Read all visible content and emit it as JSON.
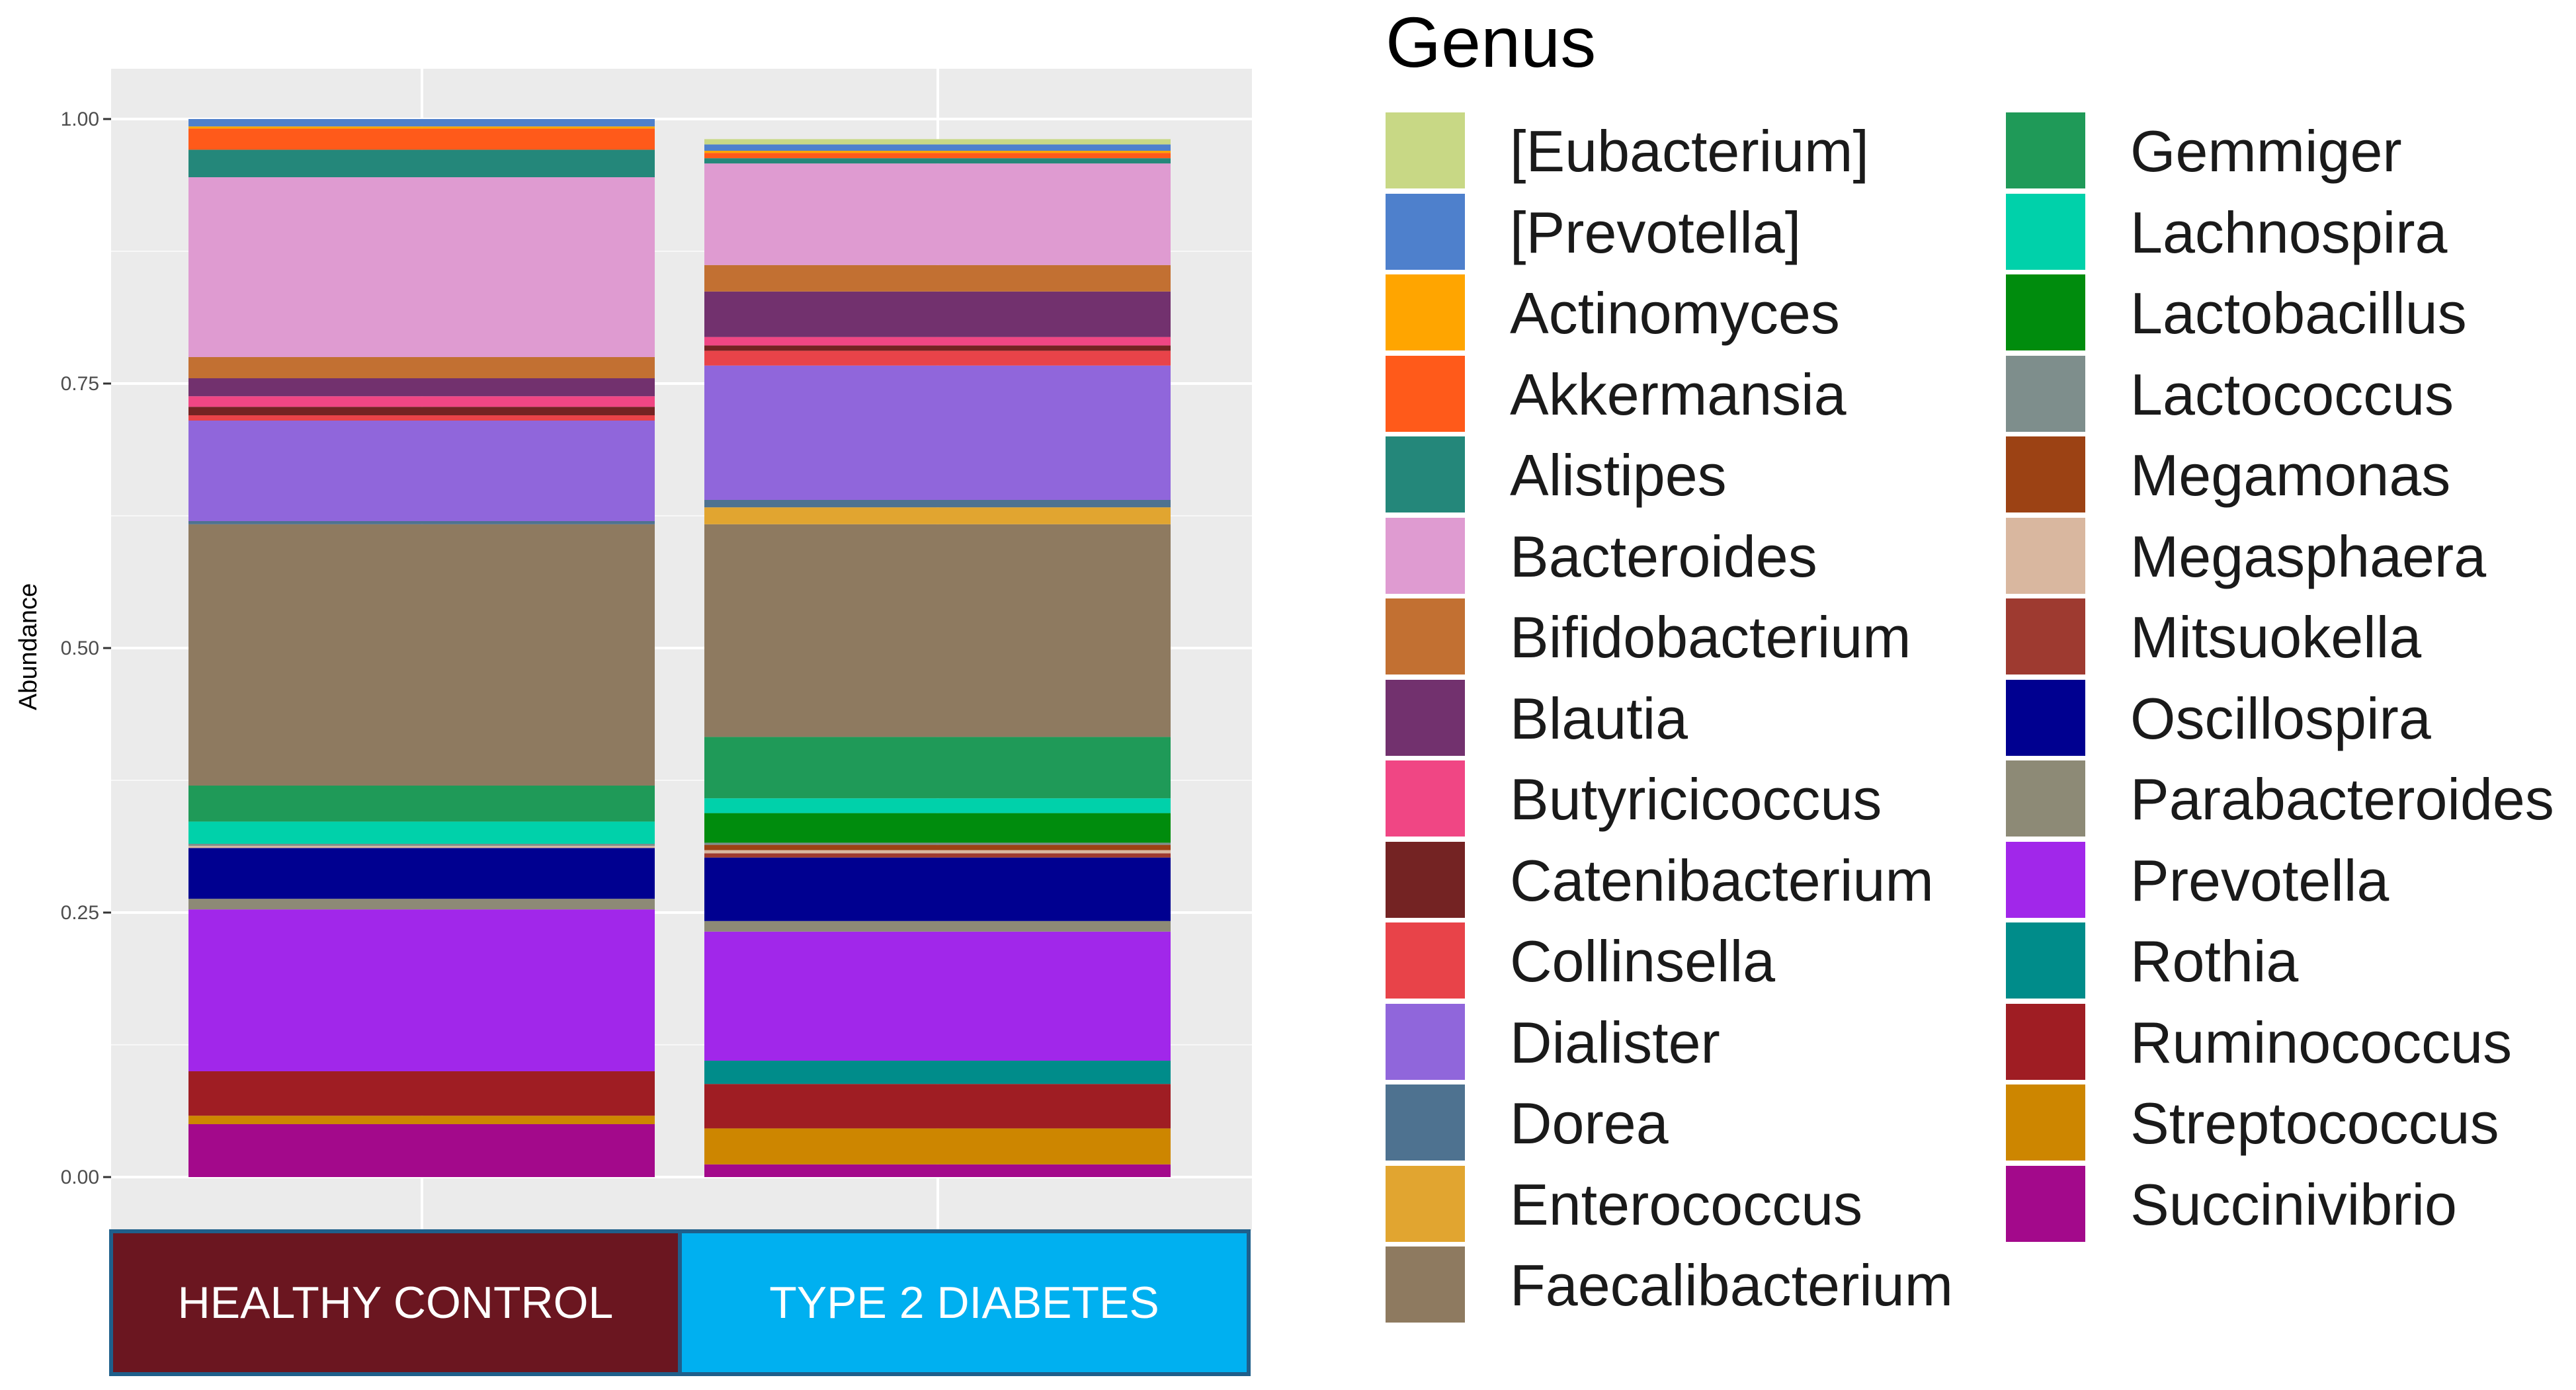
{
  "chart_data": {
    "type": "bar",
    "stacked": true,
    "ylabel": "Abundance",
    "ylim": [
      0,
      1.05
    ],
    "yticks": [
      "0.00",
      "0.25",
      "0.50",
      "0.75",
      "1.00"
    ],
    "categories": [
      "HEALTHY CONTROL",
      "TYPE 2 DIABETES"
    ],
    "strips": [
      {
        "label": "HEALTHY CONTROL",
        "color": "#6b1620",
        "text_color": "#ffffff"
      },
      {
        "label": "TYPE 2 DIABETES",
        "color": "#00b0f0",
        "text_color": "#ffffff"
      }
    ],
    "legend_title": "Genus",
    "legend_position": "right",
    "series": [
      {
        "name": "[Eubacterium]",
        "color": "#c8d885",
        "values": [
          0.0,
          0.005
        ]
      },
      {
        "name": "[Prevotella]",
        "color": "#4e80cc",
        "values": [
          0.007,
          0.006
        ]
      },
      {
        "name": "Actinomyces",
        "color": "#ffa500",
        "values": [
          0.002,
          0.002
        ]
      },
      {
        "name": "Akkermansia",
        "color": "#ff5a1a",
        "values": [
          0.02,
          0.005
        ]
      },
      {
        "name": "Alistipes",
        "color": "#24877a",
        "values": [
          0.026,
          0.005
        ]
      },
      {
        "name": "Bacteroides",
        "color": "#df9bd1",
        "values": [
          0.17,
          0.096
        ]
      },
      {
        "name": "Bifidobacterium",
        "color": "#c27032",
        "values": [
          0.02,
          0.025
        ]
      },
      {
        "name": "Blautia",
        "color": "#72316e",
        "values": [
          0.017,
          0.043
        ]
      },
      {
        "name": "Butyricicoccus",
        "color": "#f04684",
        "values": [
          0.01,
          0.008
        ]
      },
      {
        "name": "Catenibacterium",
        "color": "#742323",
        "values": [
          0.008,
          0.005
        ]
      },
      {
        "name": "Collinsella",
        "color": "#e84349",
        "values": [
          0.005,
          0.014
        ]
      },
      {
        "name": "Dialister",
        "color": "#9066db",
        "values": [
          0.095,
          0.127
        ]
      },
      {
        "name": "Dorea",
        "color": "#4e7290",
        "values": [
          0.003,
          0.007
        ]
      },
      {
        "name": "Enterococcus",
        "color": "#e1a530",
        "values": [
          0.0,
          0.016
        ]
      },
      {
        "name": "Faecalibacterium",
        "color": "#8e7a60",
        "values": [
          0.247,
          0.201
        ]
      },
      {
        "name": "Gemmiger",
        "color": "#1f9a58",
        "values": [
          0.034,
          0.058
        ]
      },
      {
        "name": "Lachnospira",
        "color": "#00d1aa",
        "values": [
          0.021,
          0.014
        ]
      },
      {
        "name": "Lactobacillus",
        "color": "#008c0d",
        "values": [
          0.0,
          0.028
        ]
      },
      {
        "name": "Lactococcus",
        "color": "#7e8e8c",
        "values": [
          0.002,
          0.002
        ]
      },
      {
        "name": "Megamonas",
        "color": "#9c4214",
        "values": [
          0.0,
          0.005
        ]
      },
      {
        "name": "Megasphaera",
        "color": "#d9b79f",
        "values": [
          0.002,
          0.003
        ]
      },
      {
        "name": "Mitsuokella",
        "color": "#9e3a30",
        "values": [
          0.0,
          0.004
        ]
      },
      {
        "name": "Oscillospira",
        "color": "#000090",
        "values": [
          0.048,
          0.06
        ]
      },
      {
        "name": "Parabacteroides",
        "color": "#8d8a76",
        "values": [
          0.01,
          0.01
        ]
      },
      {
        "name": "Prevotella",
        "color": "#a127ea",
        "values": [
          0.153,
          0.122
        ]
      },
      {
        "name": "Rothia",
        "color": "#008c8a",
        "values": [
          0.0,
          0.022
        ]
      },
      {
        "name": "Ruminococcus",
        "color": "#9f1d23",
        "values": [
          0.042,
          0.042
        ]
      },
      {
        "name": "Streptococcus",
        "color": "#cd8600",
        "values": [
          0.008,
          0.034
        ]
      },
      {
        "name": "Succinivibrio",
        "color": "#a3098b",
        "values": [
          0.05,
          0.012
        ]
      }
    ]
  }
}
